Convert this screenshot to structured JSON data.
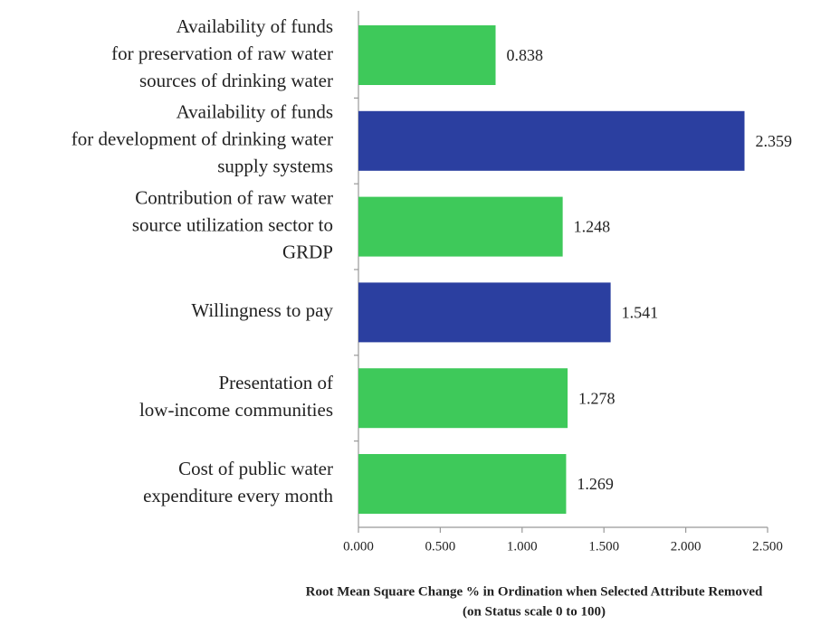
{
  "chart_data": {
    "type": "barh",
    "categories": [
      [
        "Availability of funds",
        "for preservation of raw water",
        "sources of drinking water"
      ],
      [
        "Availability of funds",
        "for development of drinking water",
        "supply systems"
      ],
      [
        "Contribution of raw water",
        "source utilization sector to",
        "GRDP"
      ],
      [
        "Willingness to pay"
      ],
      [
        "Presentation of",
        "low-income communities"
      ],
      [
        "Cost of public water",
        "expenditure every month"
      ]
    ],
    "values": [
      0.838,
      2.359,
      1.248,
      1.541,
      1.278,
      1.269
    ],
    "colors": [
      "#3ec95a",
      "#2b3fa0",
      "#3ec95a",
      "#2b3fa0",
      "#3ec95a",
      "#3ec95a"
    ],
    "xlim": [
      0,
      2.5
    ],
    "xticks": [
      {
        "value": 0,
        "label": "0.000"
      },
      {
        "value": 0.5,
        "label": "0.500"
      },
      {
        "value": 1,
        "label": "1.000"
      },
      {
        "value": 1.5,
        "label": "1.500"
      },
      {
        "value": 2,
        "label": "2.000"
      },
      {
        "value": 2.5,
        "label": "2.500"
      }
    ],
    "xlabel": [
      "Root Mean Square Change % in Ordination when Selected Attribute Removed",
      "(on Status scale 0 to 100)"
    ]
  }
}
